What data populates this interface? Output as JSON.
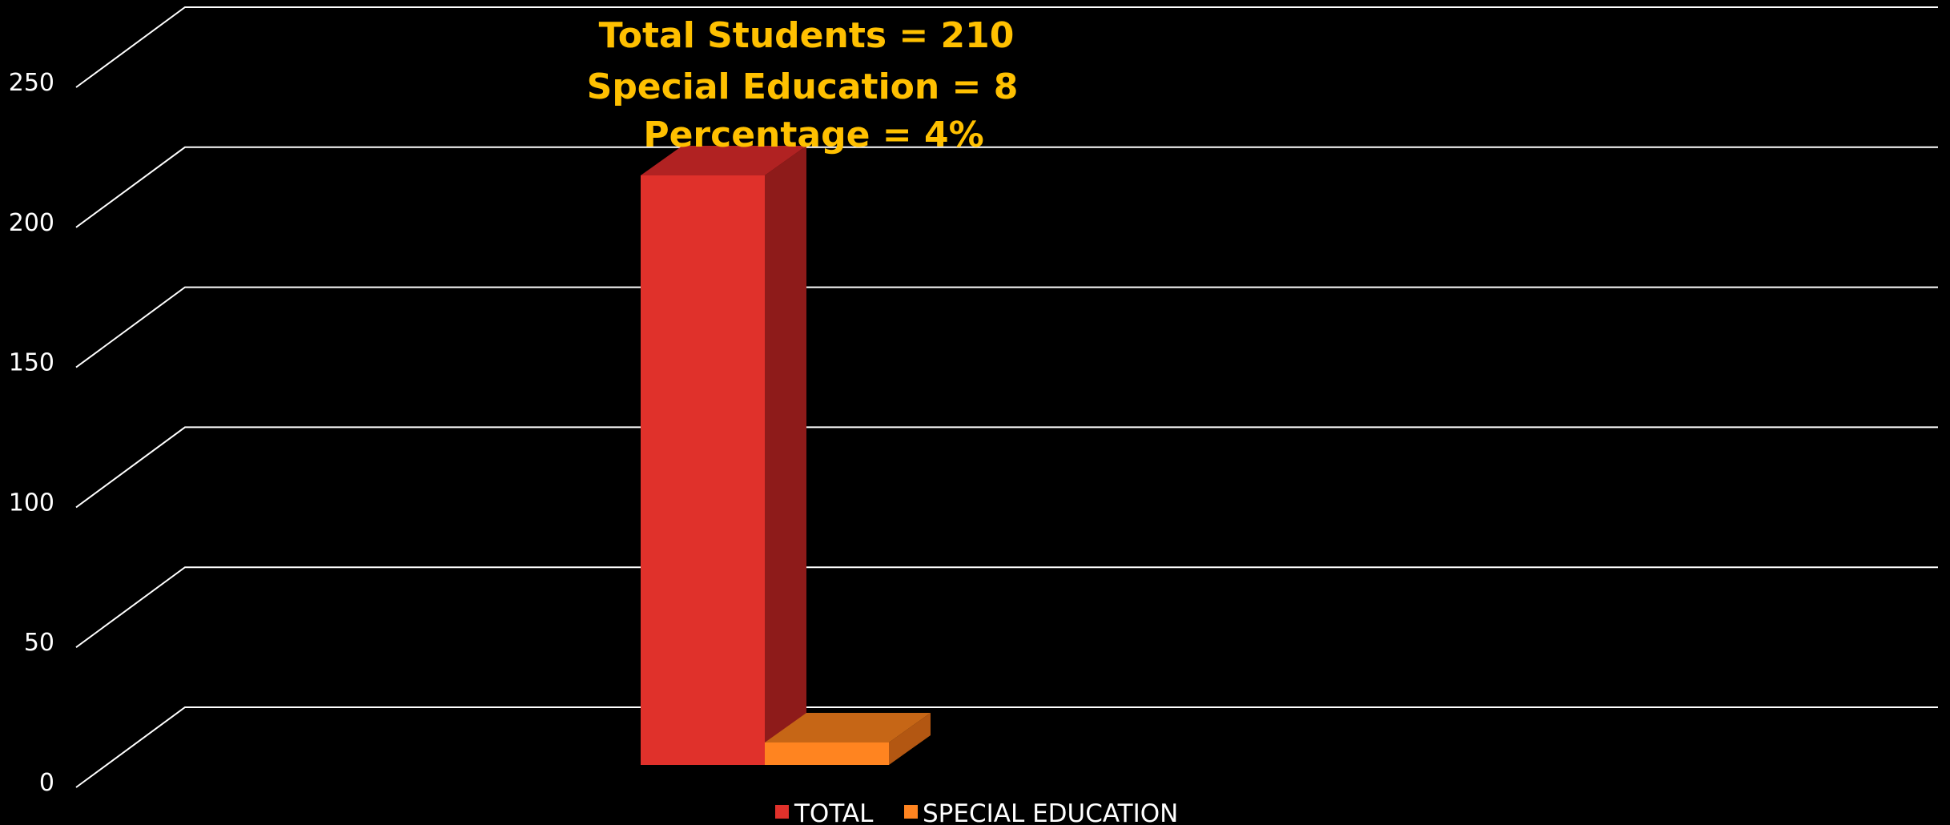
{
  "chart_data": {
    "type": "bar",
    "style": "3d-clustered-column",
    "categories": [
      ""
    ],
    "series": [
      {
        "name": "TOTAL",
        "values": [
          210
        ],
        "color": "#e0312b",
        "side_color": "#8e1b1a",
        "top_color": "#b12222"
      },
      {
        "name": "SPECIAL EDUCATION",
        "values": [
          8
        ],
        "color": "#ff8420",
        "side_color": "#b35712",
        "top_color": "#c66616"
      }
    ],
    "ylim": [
      0,
      250
    ],
    "yticks": [
      0,
      50,
      100,
      150,
      200,
      250
    ],
    "grid": true,
    "legend_position": "bottom",
    "background": "#000000",
    "annotation": {
      "lines": [
        "Total Students = 210",
        "Special Education = 8",
        "Percentage = 4%"
      ],
      "color": "#ffc000"
    }
  }
}
